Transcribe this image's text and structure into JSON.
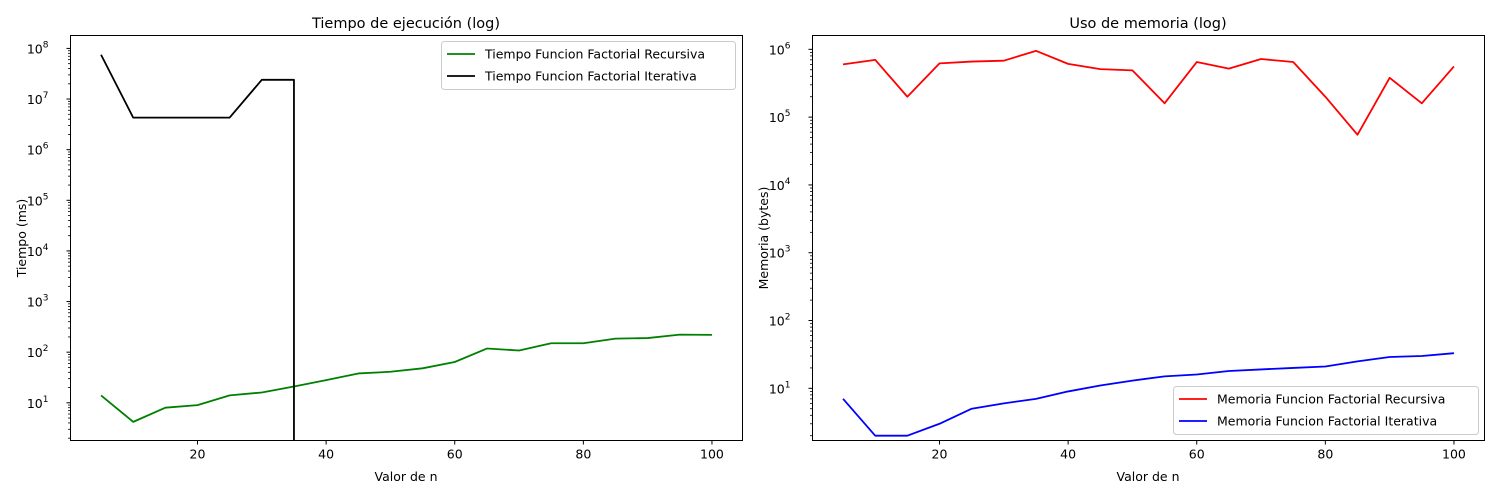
{
  "chart_data": [
    {
      "type": "line",
      "title": "Tiempo de ejecución (log)",
      "xlabel": "Valor de n",
      "ylabel": "Tiempo (ms)",
      "yscale": "log",
      "xlim": [
        0.25,
        104.75
      ],
      "ylim": [
        1.8,
        180000000
      ],
      "xticks": [
        20,
        40,
        60,
        80,
        100
      ],
      "yticks": [
        {
          "v": 10,
          "exp": "1"
        },
        {
          "v": 100,
          "exp": "2"
        },
        {
          "v": 1000,
          "exp": "3"
        },
        {
          "v": 10000,
          "exp": "4"
        },
        {
          "v": 100000,
          "exp": "5"
        },
        {
          "v": 1000000,
          "exp": "6"
        },
        {
          "v": 10000000,
          "exp": "7"
        },
        {
          "v": 100000000,
          "exp": "8"
        }
      ],
      "legend_position": "top-right",
      "grid": false,
      "series": [
        {
          "name": "Tiempo Funcion Factorial Recursiva",
          "color": "#008000",
          "x": [
            5,
            10,
            15,
            20,
            25,
            30,
            35,
            40,
            45,
            50,
            55,
            60,
            65,
            70,
            75,
            80,
            85,
            90,
            95,
            100
          ],
          "y": [
            14,
            4.2,
            8,
            9,
            14,
            16,
            21,
            28,
            38,
            41,
            48,
            64,
            118,
            108,
            150,
            150,
            185,
            190,
            222,
            220
          ]
        },
        {
          "name": "Tiempo Funcion Factorial Iterativa",
          "color": "#000000",
          "x": [
            5,
            10,
            15,
            20,
            25,
            30,
            35,
            35
          ],
          "y": [
            75000000,
            4300000,
            4300000,
            4300000,
            4300000,
            24000000,
            24000000,
            1.8
          ]
        }
      ]
    },
    {
      "type": "line",
      "title": "Uso de memoria (log)",
      "xlabel": "Valor de n",
      "ylabel": "Memoria (bytes)",
      "yscale": "log",
      "xlim": [
        0.25,
        104.75
      ],
      "ylim": [
        1.7,
        1600000
      ],
      "xticks": [
        20,
        40,
        60,
        80,
        100
      ],
      "yticks": [
        {
          "v": 10,
          "exp": "1"
        },
        {
          "v": 100,
          "exp": "2"
        },
        {
          "v": 1000,
          "exp": "3"
        },
        {
          "v": 10000,
          "exp": "4"
        },
        {
          "v": 100000,
          "exp": "5"
        },
        {
          "v": 1000000,
          "exp": "6"
        }
      ],
      "legend_position": "bottom-right",
      "grid": false,
      "series": [
        {
          "name": "Memoria Funcion Factorial Recursiva",
          "color": "#ff0000",
          "x": [
            5,
            10,
            15,
            20,
            25,
            30,
            35,
            40,
            45,
            50,
            55,
            60,
            65,
            70,
            75,
            80,
            85,
            90,
            95,
            100
          ],
          "y": [
            600000,
            700000,
            200000,
            620000,
            660000,
            680000,
            950000,
            610000,
            510000,
            490000,
            160000,
            650000,
            520000,
            720000,
            650000,
            200000,
            55000,
            380000,
            160000,
            560000
          ]
        },
        {
          "name": "Memoria Funcion Factorial Iterativa",
          "color": "#0000ff",
          "x": [
            5,
            10,
            15,
            20,
            25,
            30,
            35,
            40,
            45,
            50,
            55,
            60,
            65,
            70,
            75,
            80,
            85,
            90,
            95,
            100
          ],
          "y": [
            7,
            2,
            2,
            3,
            5,
            6,
            7,
            9,
            11,
            13,
            15,
            16,
            18,
            19,
            20,
            21,
            25,
            29,
            30,
            33
          ]
        }
      ]
    }
  ]
}
